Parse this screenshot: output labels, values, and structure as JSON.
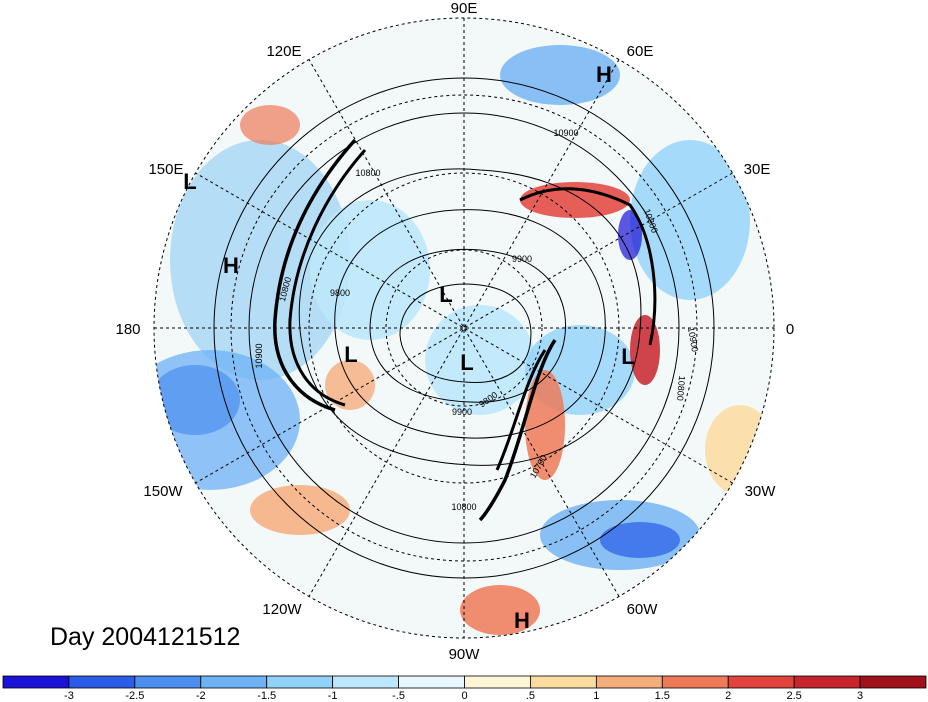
{
  "title": "Day 2004121512",
  "longitude_labels": [
    "90E",
    "60E",
    "30E",
    "0",
    "30W",
    "60W",
    "90W",
    "120W",
    "150W",
    "180",
    "150E",
    "120E"
  ],
  "pressure_centers": [
    "H",
    "H",
    "L",
    "L",
    "L",
    "L",
    "L",
    "H"
  ],
  "contour_labels": [
    "10900",
    "10800",
    "10800",
    "9900",
    "9800",
    "9900",
    "10900",
    "10800",
    "10900",
    "10800",
    "10700",
    "10800",
    "9800"
  ],
  "colorbar": {
    "tick_labels": [
      "-3",
      "-2.5",
      "-2",
      "-1.5",
      "-1",
      "-.5",
      "0",
      ".5",
      "1",
      "1.5",
      "2",
      "2.5",
      "3"
    ],
    "colors": [
      "#1a12d6",
      "#2a5ce8",
      "#4b8ff0",
      "#6db2f5",
      "#92d2fa",
      "#bde8fc",
      "#e7f7fd",
      "#fdf6d6",
      "#fbdca0",
      "#f5ad7c",
      "#ee7a58",
      "#e2433c",
      "#c8242b",
      "#a0111c"
    ]
  }
}
